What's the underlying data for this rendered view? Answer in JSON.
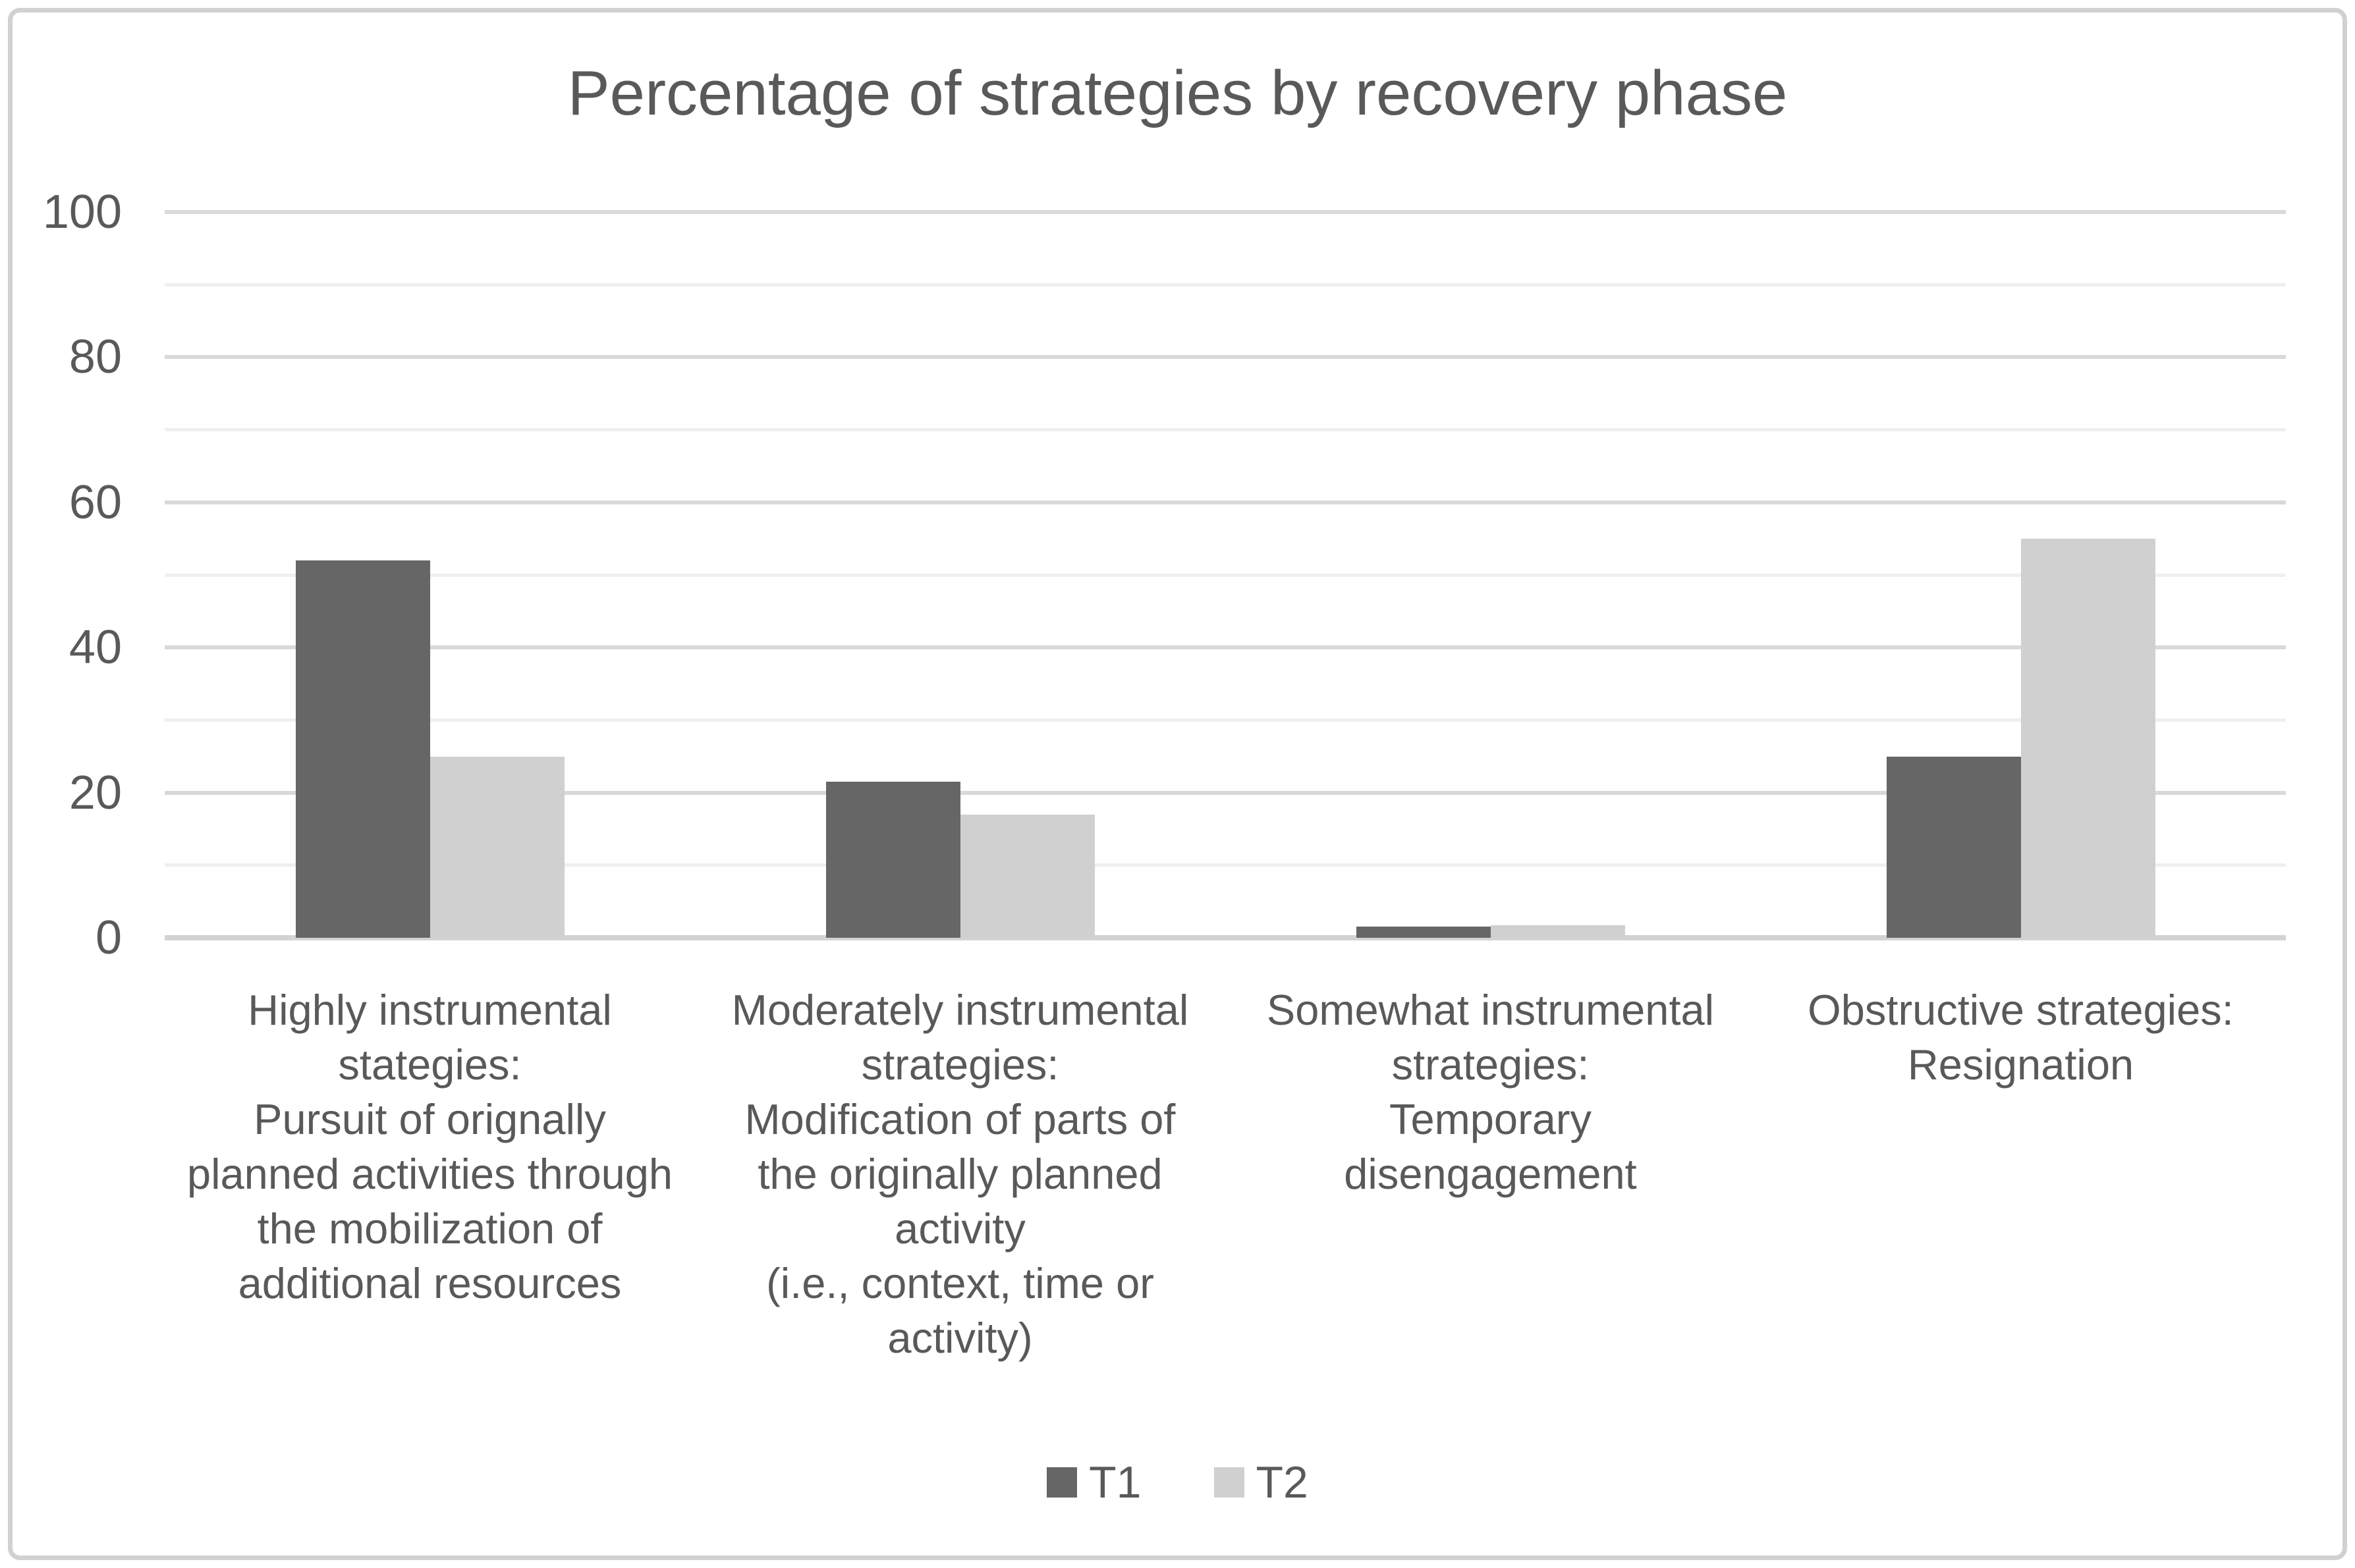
{
  "chart_data": {
    "type": "bar",
    "title": "Percentage of strategies by recovery phase",
    "categories": [
      "Highly instrumental\nstategies:\nPursuit of orignally\nplanned activities through\nthe mobilization of\nadditional resources",
      "Moderately instrumental\nstrategies:\nModification of parts of\nthe originally planned\nactivity\n(i.e., context, time or\nactivity)",
      "Somewhat instrumental\nstrategies:\nTemporary\ndisengagement",
      "Obstructive strategies:\nResignation"
    ],
    "series": [
      {
        "name": "T1",
        "color": "#666666",
        "values": [
          52,
          21.5,
          1.5,
          25
        ]
      },
      {
        "name": "T2",
        "color": "#d0d0d0",
        "values": [
          25,
          17,
          1.7,
          55
        ]
      }
    ],
    "xlabel": "",
    "ylabel": "",
    "ylim": [
      0,
      100
    ],
    "y_ticks": [
      0,
      20,
      40,
      60,
      80,
      100
    ],
    "gridlines": {
      "on": true,
      "minor_step": 10,
      "major_step": 20,
      "major_color": "#d9d9d9",
      "minor_color": "#efefef",
      "axis_line_color": "#d3d3d3"
    },
    "legend_position": "bottom-center",
    "text_color": "#595959",
    "frame_border_color": "#d1d1d1",
    "background_color": "#ffffff"
  }
}
